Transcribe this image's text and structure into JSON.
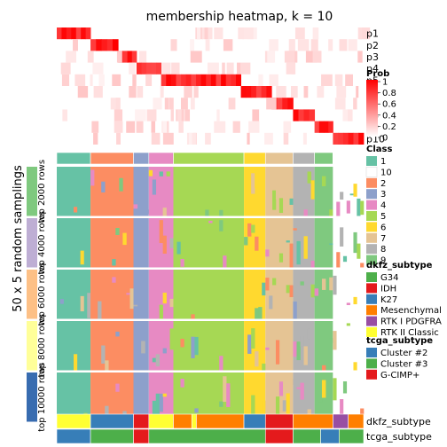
{
  "chart_data": {
    "type": "heatmap",
    "title": "membership heatmap, k = 10",
    "ylabel": "50 x 5 random samplings",
    "membership_rows": [
      "p1",
      "p2",
      "p3",
      "p4",
      "p5",
      "p6",
      "p7",
      "p8",
      "p9",
      "p10"
    ],
    "membership_blocks": [
      {
        "row": 0,
        "from": 0.0,
        "to": 0.11
      },
      {
        "row": 1,
        "from": 0.11,
        "to": 0.2
      },
      {
        "row": 2,
        "from": 0.2,
        "to": 0.26
      },
      {
        "row": 3,
        "from": 0.26,
        "to": 0.34
      },
      {
        "row": 4,
        "from": 0.34,
        "to": 0.6
      },
      {
        "row": 5,
        "from": 0.6,
        "to": 0.7
      },
      {
        "row": 6,
        "from": 0.7,
        "to": 0.77
      },
      {
        "row": 7,
        "from": 0.77,
        "to": 0.84
      },
      {
        "row": 8,
        "from": 0.84,
        "to": 0.9
      },
      {
        "row": 9,
        "from": 0.9,
        "to": 1.0
      }
    ],
    "class_segments": [
      {
        "class": "1",
        "from": 0.0,
        "to": 0.11
      },
      {
        "class": "2",
        "from": 0.11,
        "to": 0.25
      },
      {
        "class": "3",
        "from": 0.25,
        "to": 0.3
      },
      {
        "class": "4",
        "from": 0.3,
        "to": 0.38
      },
      {
        "class": "5",
        "from": 0.38,
        "to": 0.61
      },
      {
        "class": "6",
        "from": 0.61,
        "to": 0.68
      },
      {
        "class": "7",
        "from": 0.68,
        "to": 0.77
      },
      {
        "class": "8",
        "from": 0.77,
        "to": 0.84
      },
      {
        "class": "9",
        "from": 0.84,
        "to": 0.9
      },
      {
        "class": "10",
        "from": 0.9,
        "to": 1.0
      }
    ],
    "row_groups": [
      {
        "label": "top 2000 rows",
        "color": "#7FC97F"
      },
      {
        "label": "top 4000 rows",
        "color": "#BEAED4"
      },
      {
        "label": "top 6000 rows",
        "color": "#FDC086"
      },
      {
        "label": "top 8000 rows",
        "color": "#FFFF99"
      },
      {
        "label": "top 10000 rows",
        "color": "#386CB0"
      }
    ],
    "bottom_annotations": [
      "dkfz_subtype",
      "tcga_subtype"
    ],
    "dkfz_segments": [
      {
        "subtype": "RTK II Classic",
        "from": 0.0,
        "to": 0.11
      },
      {
        "subtype": "K27",
        "from": 0.11,
        "to": 0.25
      },
      {
        "subtype": "IDH",
        "from": 0.25,
        "to": 0.3
      },
      {
        "subtype": "RTK II Classic",
        "from": 0.3,
        "to": 0.38
      },
      {
        "subtype": "Mesenchymal",
        "from": 0.38,
        "to": 0.44
      },
      {
        "subtype": "RTK II Classic",
        "from": 0.44,
        "to": 0.455
      },
      {
        "subtype": "Mesenchymal",
        "from": 0.455,
        "to": 0.61
      },
      {
        "subtype": "K27",
        "from": 0.61,
        "to": 0.68
      },
      {
        "subtype": "IDH",
        "from": 0.68,
        "to": 0.77
      },
      {
        "subtype": "Mesenchymal",
        "from": 0.77,
        "to": 0.9
      },
      {
        "subtype": "RTK I PDGFRA",
        "from": 0.9,
        "to": 0.95
      },
      {
        "subtype": "Mesenchymal",
        "from": 0.95,
        "to": 1.0
      }
    ],
    "tcga_segments": [
      {
        "subtype": "Cluster #2",
        "from": 0.0,
        "to": 0.11
      },
      {
        "subtype": "Cluster #3",
        "from": 0.11,
        "to": 0.25
      },
      {
        "subtype": "G-CIMP+",
        "from": 0.25,
        "to": 0.3
      },
      {
        "subtype": "Cluster #3",
        "from": 0.3,
        "to": 0.68
      },
      {
        "subtype": "G-CIMP+",
        "from": 0.68,
        "to": 0.77
      },
      {
        "subtype": "Cluster #3",
        "from": 0.77,
        "to": 0.86
      },
      {
        "subtype": "Cluster #2",
        "from": 0.86,
        "to": 0.92
      },
      {
        "subtype": "Cluster #3",
        "from": 0.92,
        "to": 1.0
      }
    ],
    "legends": {
      "prob": {
        "title": "Prob",
        "ticks": [
          "1",
          "0.8",
          "0.6",
          "0.4",
          "0.2",
          "0"
        ],
        "scale": [
          "#FFFFFF",
          "#FF0000"
        ]
      },
      "class": {
        "title": "Class",
        "entries": [
          {
            "label": "1",
            "color": "#66C2A5"
          },
          {
            "label": "10",
            "color": "#FFFFFF"
          },
          {
            "label": "2",
            "color": "#FC8D62"
          },
          {
            "label": "3",
            "color": "#8DA0CB"
          },
          {
            "label": "4",
            "color": "#E78AC3"
          },
          {
            "label": "5",
            "color": "#A6D854"
          },
          {
            "label": "6",
            "color": "#FFD92F"
          },
          {
            "label": "7",
            "color": "#E5C494"
          },
          {
            "label": "8",
            "color": "#B3B3B3"
          },
          {
            "label": "9",
            "color": "#7FC97F"
          }
        ]
      },
      "dkfz_subtype": {
        "title": "dkfz_subtype",
        "entries": [
          {
            "label": "G34",
            "color": "#4DAF4A"
          },
          {
            "label": "IDH",
            "color": "#E41A1C"
          },
          {
            "label": "K27",
            "color": "#377EB8"
          },
          {
            "label": "Mesenchymal",
            "color": "#FF7F00"
          },
          {
            "label": "RTK I PDGFRA",
            "color": "#984EA3"
          },
          {
            "label": "RTK II Classic",
            "color": "#FFFF33"
          }
        ]
      },
      "tcga_subtype": {
        "title": "tcga_subtype",
        "entries": [
          {
            "label": "Cluster #2",
            "color": "#377EB8"
          },
          {
            "label": "Cluster #3",
            "color": "#4DAF4A"
          },
          {
            "label": "G-CIMP+",
            "color": "#E41A1C"
          }
        ]
      }
    }
  }
}
